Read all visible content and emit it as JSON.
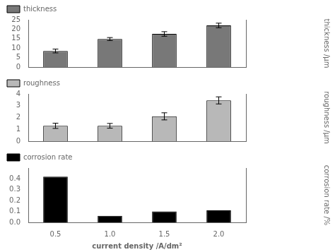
{
  "chart_data": [
    {
      "type": "bar",
      "categories": [
        "0.5",
        "1.0",
        "1.5",
        "2.0"
      ],
      "series": [
        {
          "name": "thickness",
          "color": "#787878",
          "values": [
            8.5,
            14.8,
            17.5,
            22.0
          ],
          "errors": [
            1.0,
            0.8,
            1.2,
            1.2
          ]
        }
      ],
      "ylabel": "thickness /μm",
      "ylim": [
        0,
        25
      ],
      "yticks": [
        0,
        5,
        10,
        15,
        20,
        25
      ],
      "grid": false,
      "legend": "upper left",
      "tick_labels": "y"
    },
    {
      "type": "bar",
      "categories": [
        "0.5",
        "1.0",
        "1.5",
        "2.0"
      ],
      "series": [
        {
          "name": "roughness",
          "color": "#b8b8b8",
          "values": [
            1.3,
            1.3,
            2.1,
            3.45
          ],
          "errors": [
            0.22,
            0.2,
            0.3,
            0.3
          ]
        }
      ],
      "ylabel": "roughness /μm",
      "ylim": [
        0,
        4
      ],
      "yticks": [
        0,
        1,
        2,
        3,
        4
      ],
      "grid": false,
      "legend": "upper left",
      "tick_labels": "y"
    },
    {
      "type": "bar",
      "categories": [
        "0.5",
        "1.0",
        "1.5",
        "2.0"
      ],
      "series": [
        {
          "name": "corrosion rate",
          "color": "#000000",
          "values": [
            0.42,
            0.06,
            0.1,
            0.11
          ]
        }
      ],
      "xlabel": "current density /A/dm²",
      "ylabel": "corrosion rate /%",
      "ylim": [
        0.0,
        0.5
      ],
      "yticks": [
        {
          "value": 0.0,
          "label": "0.0"
        },
        0.1,
        0.2,
        0.3,
        0.4
      ],
      "grid": false,
      "legend": "upper left"
    }
  ]
}
